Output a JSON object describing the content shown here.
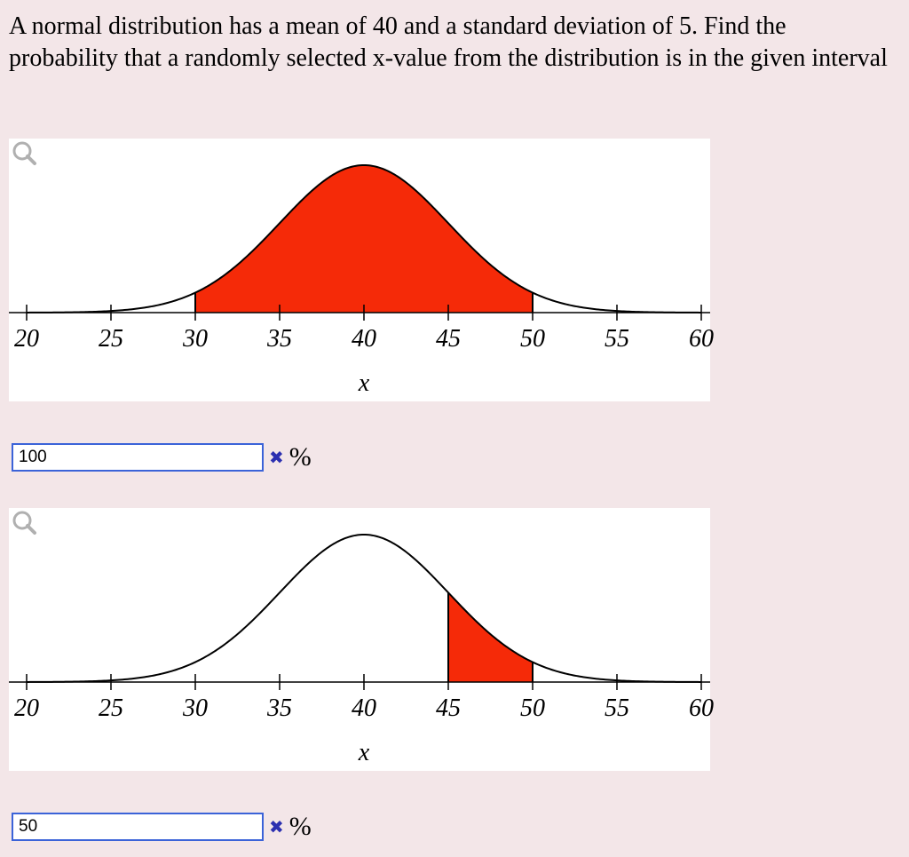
{
  "question": {
    "text": "A normal distribution has a mean of 40 and a standard deviation of 5. Find the probability that a randomly selected x-value from the distribution is in the given interval"
  },
  "plots": [
    {
      "chart_data": {
        "type": "area",
        "mean": 40,
        "sd": 5,
        "xlim": [
          20,
          60
        ],
        "ticks": [
          20,
          25,
          30,
          35,
          40,
          45,
          50,
          55,
          60
        ],
        "shaded_interval": [
          30,
          50
        ],
        "xlabel": "x",
        "fill_color": "#f52a08",
        "curve_color": "#000000"
      },
      "answer": {
        "value": "100",
        "mark_icon": "cross-icon",
        "unit": "%"
      }
    },
    {
      "chart_data": {
        "type": "area",
        "mean": 40,
        "sd": 5,
        "xlim": [
          20,
          60
        ],
        "ticks": [
          20,
          25,
          30,
          35,
          40,
          45,
          50,
          55,
          60
        ],
        "shaded_interval": [
          45,
          50
        ],
        "xlabel": "x",
        "fill_color": "#f52a08",
        "curve_color": "#000000"
      },
      "answer": {
        "value": "50",
        "mark_icon": "cross-icon",
        "unit": "%"
      }
    }
  ]
}
